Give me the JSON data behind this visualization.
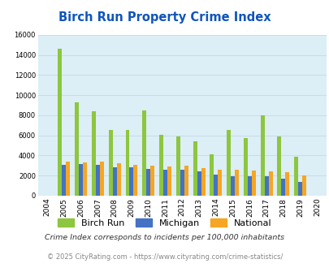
{
  "title": "Birch Run Property Crime Index",
  "years": [
    "2004",
    "2005",
    "2006",
    "2007",
    "2008",
    "2009",
    "2010",
    "2011",
    "2012",
    "2013",
    "2014",
    "2015",
    "2016",
    "2017",
    "2018",
    "2019",
    "2020"
  ],
  "birch_run": [
    0,
    14600,
    9300,
    8400,
    6500,
    6500,
    8500,
    6050,
    5900,
    5400,
    4100,
    6500,
    5700,
    8000,
    5900,
    3900,
    0
  ],
  "michigan": [
    0,
    3050,
    3150,
    3050,
    2850,
    2850,
    2650,
    2550,
    2550,
    2400,
    2100,
    1900,
    1950,
    1950,
    1700,
    1400,
    0
  ],
  "national": [
    0,
    3400,
    3300,
    3350,
    3200,
    3050,
    3000,
    2900,
    2950,
    2700,
    2600,
    2550,
    2500,
    2450,
    2350,
    2050,
    0
  ],
  "birch_run_color": "#8dc63f",
  "michigan_color": "#4472c4",
  "national_color": "#f5a623",
  "bg_color": "#dceef6",
  "ylim": [
    0,
    16000
  ],
  "yticks": [
    0,
    2000,
    4000,
    6000,
    8000,
    10000,
    12000,
    14000,
    16000
  ],
  "grid_color": "#c8dce8",
  "title_color": "#1055bb",
  "footnote1": "Crime Index corresponds to incidents per 100,000 inhabitants",
  "footnote2": "© 2025 CityRating.com - https://www.cityrating.com/crime-statistics/",
  "footnote_color1": "#333333",
  "footnote_color2": "#888888"
}
